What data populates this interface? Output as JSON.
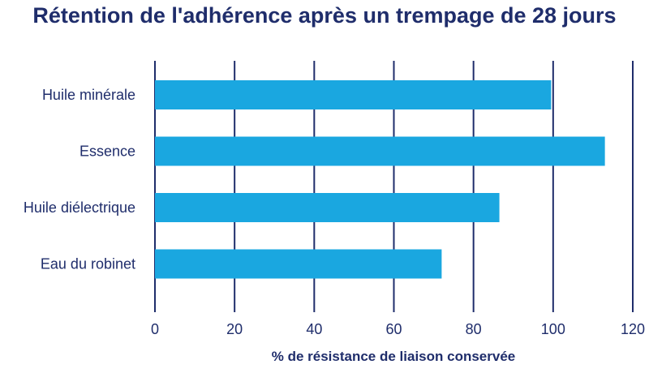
{
  "chart_data": {
    "type": "bar",
    "orientation": "horizontal",
    "title": "Rétention de l'adhérence après un trempage de 28 jours",
    "xlabel": "% de résistance de liaison conservée",
    "ylabel": "",
    "categories": [
      "Huile minérale",
      "Essence",
      "Huile diélectrique",
      "Eau du robinet"
    ],
    "values": [
      99.5,
      113,
      86.5,
      72
    ],
    "xlim": [
      0,
      120
    ],
    "ticks": [
      "0",
      "20",
      "40",
      "60",
      "80",
      "100",
      "120"
    ],
    "grid": true,
    "legend": "none"
  },
  "colors": {
    "bar": "#1aa7e0",
    "grid": "#1f2d6b",
    "text": "#1f2d6b"
  }
}
